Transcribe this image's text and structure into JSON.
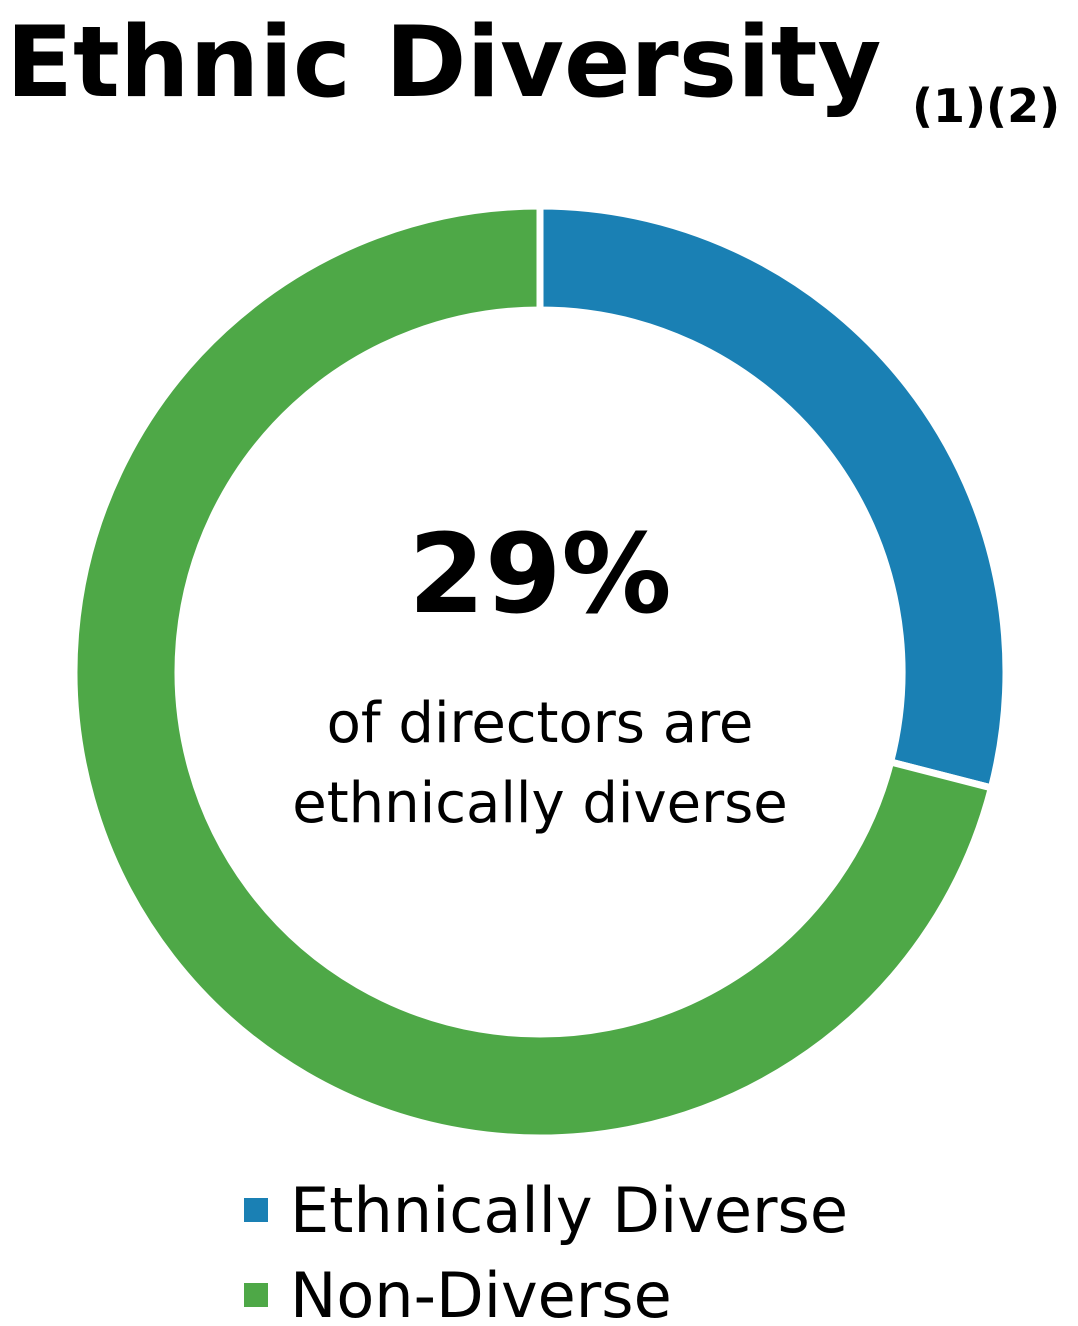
{
  "chart_data": {
    "type": "donut",
    "title": "Ethnic Diversity",
    "title_note": "(1)(2)",
    "categories": [
      "Ethnically Diverse",
      "Non-Diverse"
    ],
    "values": [
      29,
      71
    ],
    "value_labels": [
      "29%",
      null
    ],
    "colors": [
      "#1a80b4",
      "#4ea847"
    ],
    "center_text": [
      "of directors are",
      "ethnically diverse"
    ]
  }
}
